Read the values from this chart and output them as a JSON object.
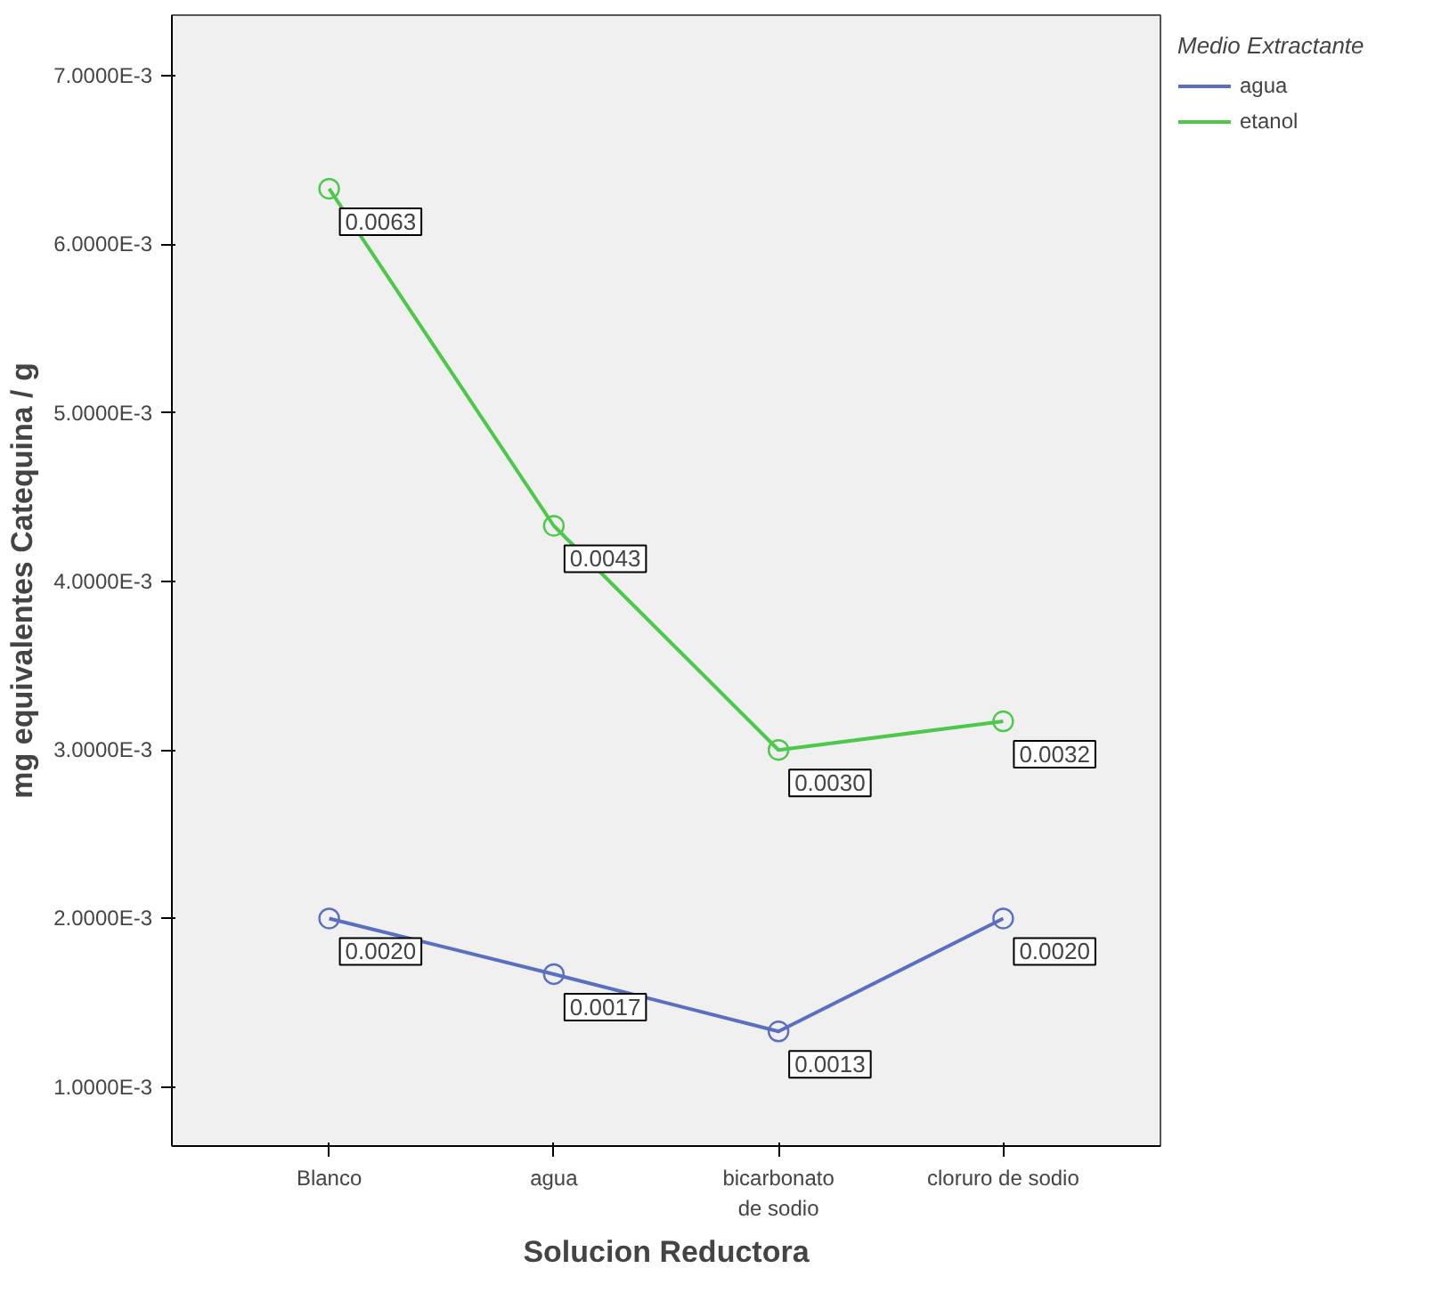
{
  "chart_data": {
    "type": "line",
    "xlabel": "Solucion Reductora",
    "ylabel": "mg equivalentes Catequina / g",
    "legend_title": "Medio Extractante",
    "legend": "top right",
    "marker": "circle",
    "line_style": "solid",
    "grid": false,
    "categories": [
      "Blanco",
      "agua",
      "bicarbonato de sodio",
      "cloruro de sodio"
    ],
    "ylim": [
      0.00065,
      0.00736
    ],
    "yticks": [
      {
        "value": 0.001,
        "label": "1.0000E-3"
      },
      {
        "value": 0.002,
        "label": "2.0000E-3"
      },
      {
        "value": 0.003,
        "label": "3.0000E-3"
      },
      {
        "value": 0.004,
        "label": "4.0000E-3"
      },
      {
        "value": 0.005,
        "label": "5.0000E-3"
      },
      {
        "value": 0.006,
        "label": "6.0000E-3"
      },
      {
        "value": 0.007,
        "label": "7.0000E-3"
      }
    ],
    "series": [
      {
        "name": "agua",
        "color": "#5b6fc1",
        "values": [
          0.002,
          0.00167,
          0.00133,
          0.002
        ],
        "value_labels": [
          "0.0020",
          "0.0017",
          "0.0013",
          "0.0020"
        ]
      },
      {
        "name": "etanol",
        "color": "#4cc84a",
        "values": [
          0.00633,
          0.00433,
          0.003,
          0.00317
        ],
        "value_labels": [
          "0.0063",
          "0.0043",
          "0.0030",
          "0.0032"
        ]
      }
    ]
  }
}
